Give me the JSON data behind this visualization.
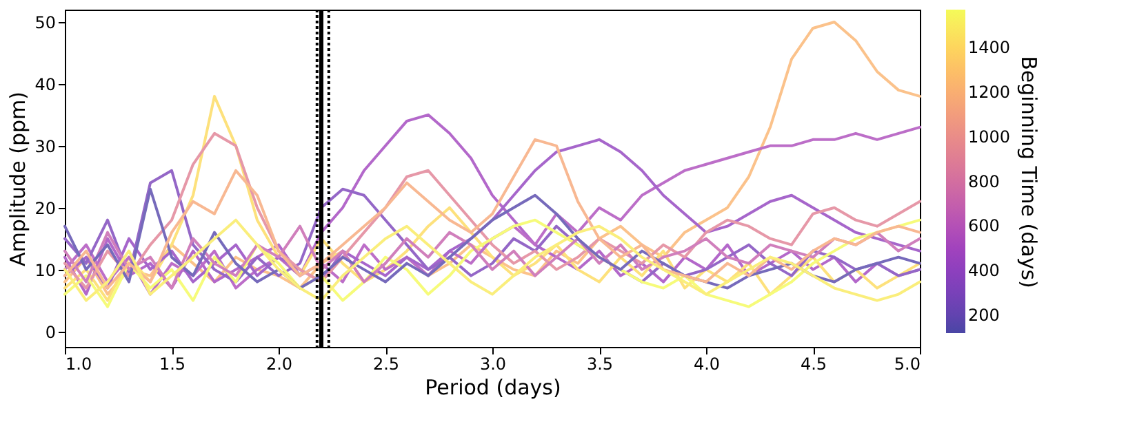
{
  "chart_data": {
    "type": "line",
    "xlabel": "Period (days)",
    "ylabel": "Amplitude (ppm)",
    "clabel": "Beginning Time (days)",
    "xlim": [
      1.0,
      5.0
    ],
    "xticks": [
      {
        "value": 1.0,
        "label": "1.0"
      },
      {
        "value": 1.5,
        "label": "1.5"
      },
      {
        "value": 2.0,
        "label": "2.0"
      },
      {
        "value": 2.5,
        "label": "2.5"
      },
      {
        "value": 3.0,
        "label": "3.0"
      },
      {
        "value": 3.5,
        "label": "3.5"
      },
      {
        "value": 4.0,
        "label": "4.0"
      },
      {
        "value": 4.5,
        "label": "4.5"
      },
      {
        "value": 5.0,
        "label": "5.0"
      }
    ],
    "ylim": [
      -2.5,
      52
    ],
    "yticks": [
      0,
      10,
      20,
      30,
      40,
      50
    ],
    "clim": [
      120,
      1570
    ],
    "cticks": [
      200,
      400,
      600,
      800,
      1000,
      1200,
      1400
    ],
    "grid": false,
    "marker": "none",
    "line_style": "solid",
    "x": [
      1.0,
      1.1,
      1.2,
      1.3,
      1.4,
      1.5,
      1.6,
      1.7,
      1.8,
      1.9,
      2.0,
      2.1,
      2.2,
      2.3,
      2.4,
      2.5,
      2.6,
      2.7,
      2.8,
      2.9,
      3.0,
      3.1,
      3.2,
      3.3,
      3.4,
      3.5,
      3.6,
      3.7,
      3.8,
      3.9,
      4.0,
      4.1,
      4.2,
      4.3,
      4.4,
      4.5,
      4.6,
      4.7,
      4.8,
      4.9,
      5.0
    ],
    "series": [
      {
        "color": "#fbc28b",
        "values": [
          8,
          12,
          6,
          10,
          9,
          14,
          11,
          8,
          12,
          10,
          9,
          7,
          11,
          13,
          8,
          10,
          12,
          9,
          11,
          14,
          12,
          10,
          9,
          13,
          11,
          15,
          17,
          14,
          12,
          16,
          18,
          20,
          25,
          33,
          44,
          49,
          50,
          47,
          42,
          39,
          38
        ]
      },
      {
        "color": "#b368ca",
        "values": [
          12,
          6,
          15,
          9,
          11,
          7,
          13,
          8,
          10,
          12,
          14,
          9,
          16,
          20,
          26,
          30,
          34,
          35,
          32,
          28,
          22,
          18,
          14,
          12,
          10,
          13,
          9,
          11,
          8,
          12,
          10,
          14,
          9,
          11,
          13,
          10,
          12,
          8,
          11,
          9,
          10
        ]
      },
      {
        "color": "#fde17c",
        "values": [
          7,
          10,
          5,
          12,
          8,
          14,
          22,
          38,
          30,
          18,
          12,
          9,
          15,
          11,
          8,
          10,
          13,
          17,
          20,
          16,
          12,
          9,
          11,
          14,
          10,
          8,
          12,
          9,
          13,
          7,
          10,
          8,
          11,
          6,
          9,
          12,
          8,
          10,
          7,
          9,
          11
        ]
      },
      {
        "color": "#bc6ec8",
        "values": [
          10,
          14,
          8,
          12,
          6,
          11,
          9,
          13,
          7,
          10,
          12,
          9,
          11,
          8,
          14,
          10,
          12,
          9,
          13,
          11,
          15,
          17,
          14,
          19,
          16,
          20,
          18,
          22,
          24,
          26,
          27,
          28,
          29,
          30,
          30,
          31,
          31,
          32,
          31,
          32,
          33
        ]
      },
      {
        "color": "#a666cb",
        "values": [
          9,
          12,
          7,
          15,
          10,
          13,
          8,
          11,
          14,
          9,
          12,
          10,
          8,
          13,
          11,
          9,
          12,
          10,
          13,
          15,
          18,
          22,
          26,
          29,
          30,
          31,
          29,
          26,
          22,
          19,
          16,
          17,
          19,
          21,
          22,
          20,
          18,
          16,
          15,
          14,
          13
        ]
      },
      {
        "color": "#9467c7",
        "values": [
          15,
          11,
          18,
          9,
          24,
          26,
          14,
          10,
          8,
          12,
          9,
          11,
          20,
          23,
          22,
          18,
          14,
          10,
          12,
          9,
          11,
          15,
          13,
          17,
          14,
          12,
          10,
          8,
          11,
          9,
          10,
          12,
          14,
          11,
          9,
          13,
          12,
          10,
          11,
          9,
          10
        ]
      },
      {
        "color": "#e698a8",
        "values": [
          11,
          7,
          13,
          9,
          14,
          18,
          27,
          32,
          30,
          20,
          13,
          10,
          8,
          12,
          16,
          20,
          25,
          26,
          22,
          18,
          14,
          11,
          13,
          10,
          12,
          15,
          13,
          11,
          14,
          12,
          16,
          18,
          17,
          15,
          14,
          19,
          20,
          18,
          17,
          19,
          21
        ]
      },
      {
        "color": "#f6fb7a",
        "values": [
          6,
          9,
          4,
          11,
          7,
          10,
          5,
          12,
          8,
          14,
          11,
          7,
          9,
          5,
          8,
          12,
          10,
          6,
          9,
          13,
          15,
          17,
          18,
          16,
          14,
          12,
          10,
          8,
          7,
          9,
          6,
          5,
          4,
          6,
          8,
          11,
          13,
          15,
          16,
          17,
          18
        ]
      },
      {
        "color": "#d07fbc",
        "values": [
          13,
          8,
          16,
          10,
          12,
          7,
          15,
          11,
          9,
          14,
          12,
          17,
          10,
          13,
          8,
          11,
          15,
          12,
          16,
          14,
          10,
          13,
          9,
          12,
          15,
          11,
          14,
          10,
          12,
          13,
          15,
          12,
          11,
          14,
          13,
          12,
          15,
          14,
          16,
          13,
          15
        ]
      },
      {
        "color": "#766abb",
        "values": [
          17,
          10,
          14,
          8,
          23,
          12,
          9,
          16,
          11,
          8,
          10,
          7,
          9,
          12,
          10,
          8,
          11,
          9,
          12,
          15,
          18,
          20,
          22,
          19,
          15,
          12,
          10,
          13,
          11,
          9,
          8,
          7,
          9,
          10,
          11,
          9,
          8,
          10,
          11,
          12,
          11
        ]
      },
      {
        "color": "#f8b892",
        "values": [
          9,
          13,
          7,
          11,
          8,
          16,
          21,
          19,
          26,
          22,
          13,
          9,
          11,
          14,
          17,
          20,
          24,
          21,
          18,
          16,
          19,
          25,
          31,
          30,
          21,
          15,
          12,
          14,
          10,
          9,
          8,
          11,
          9,
          12,
          10,
          13,
          15,
          14,
          16,
          17,
          16
        ]
      },
      {
        "color": "#faee7c",
        "values": [
          10,
          5,
          8,
          13,
          6,
          9,
          12,
          15,
          18,
          14,
          10,
          7,
          5,
          9,
          12,
          15,
          17,
          14,
          11,
          8,
          6,
          9,
          12,
          14,
          16,
          17,
          15,
          12,
          10,
          8,
          6,
          8,
          10,
          12,
          11,
          9,
          7,
          6,
          5,
          6,
          8
        ]
      }
    ],
    "ref_lines": [
      {
        "axis": "x",
        "value": 2.2,
        "color": "#000000",
        "line_style": "solid"
      },
      {
        "axis": "x",
        "value": 2.18,
        "color": "#000000",
        "line_style": "dotted"
      },
      {
        "axis": "x",
        "value": 2.235,
        "color": "#000000",
        "line_style": "dotted"
      }
    ]
  }
}
